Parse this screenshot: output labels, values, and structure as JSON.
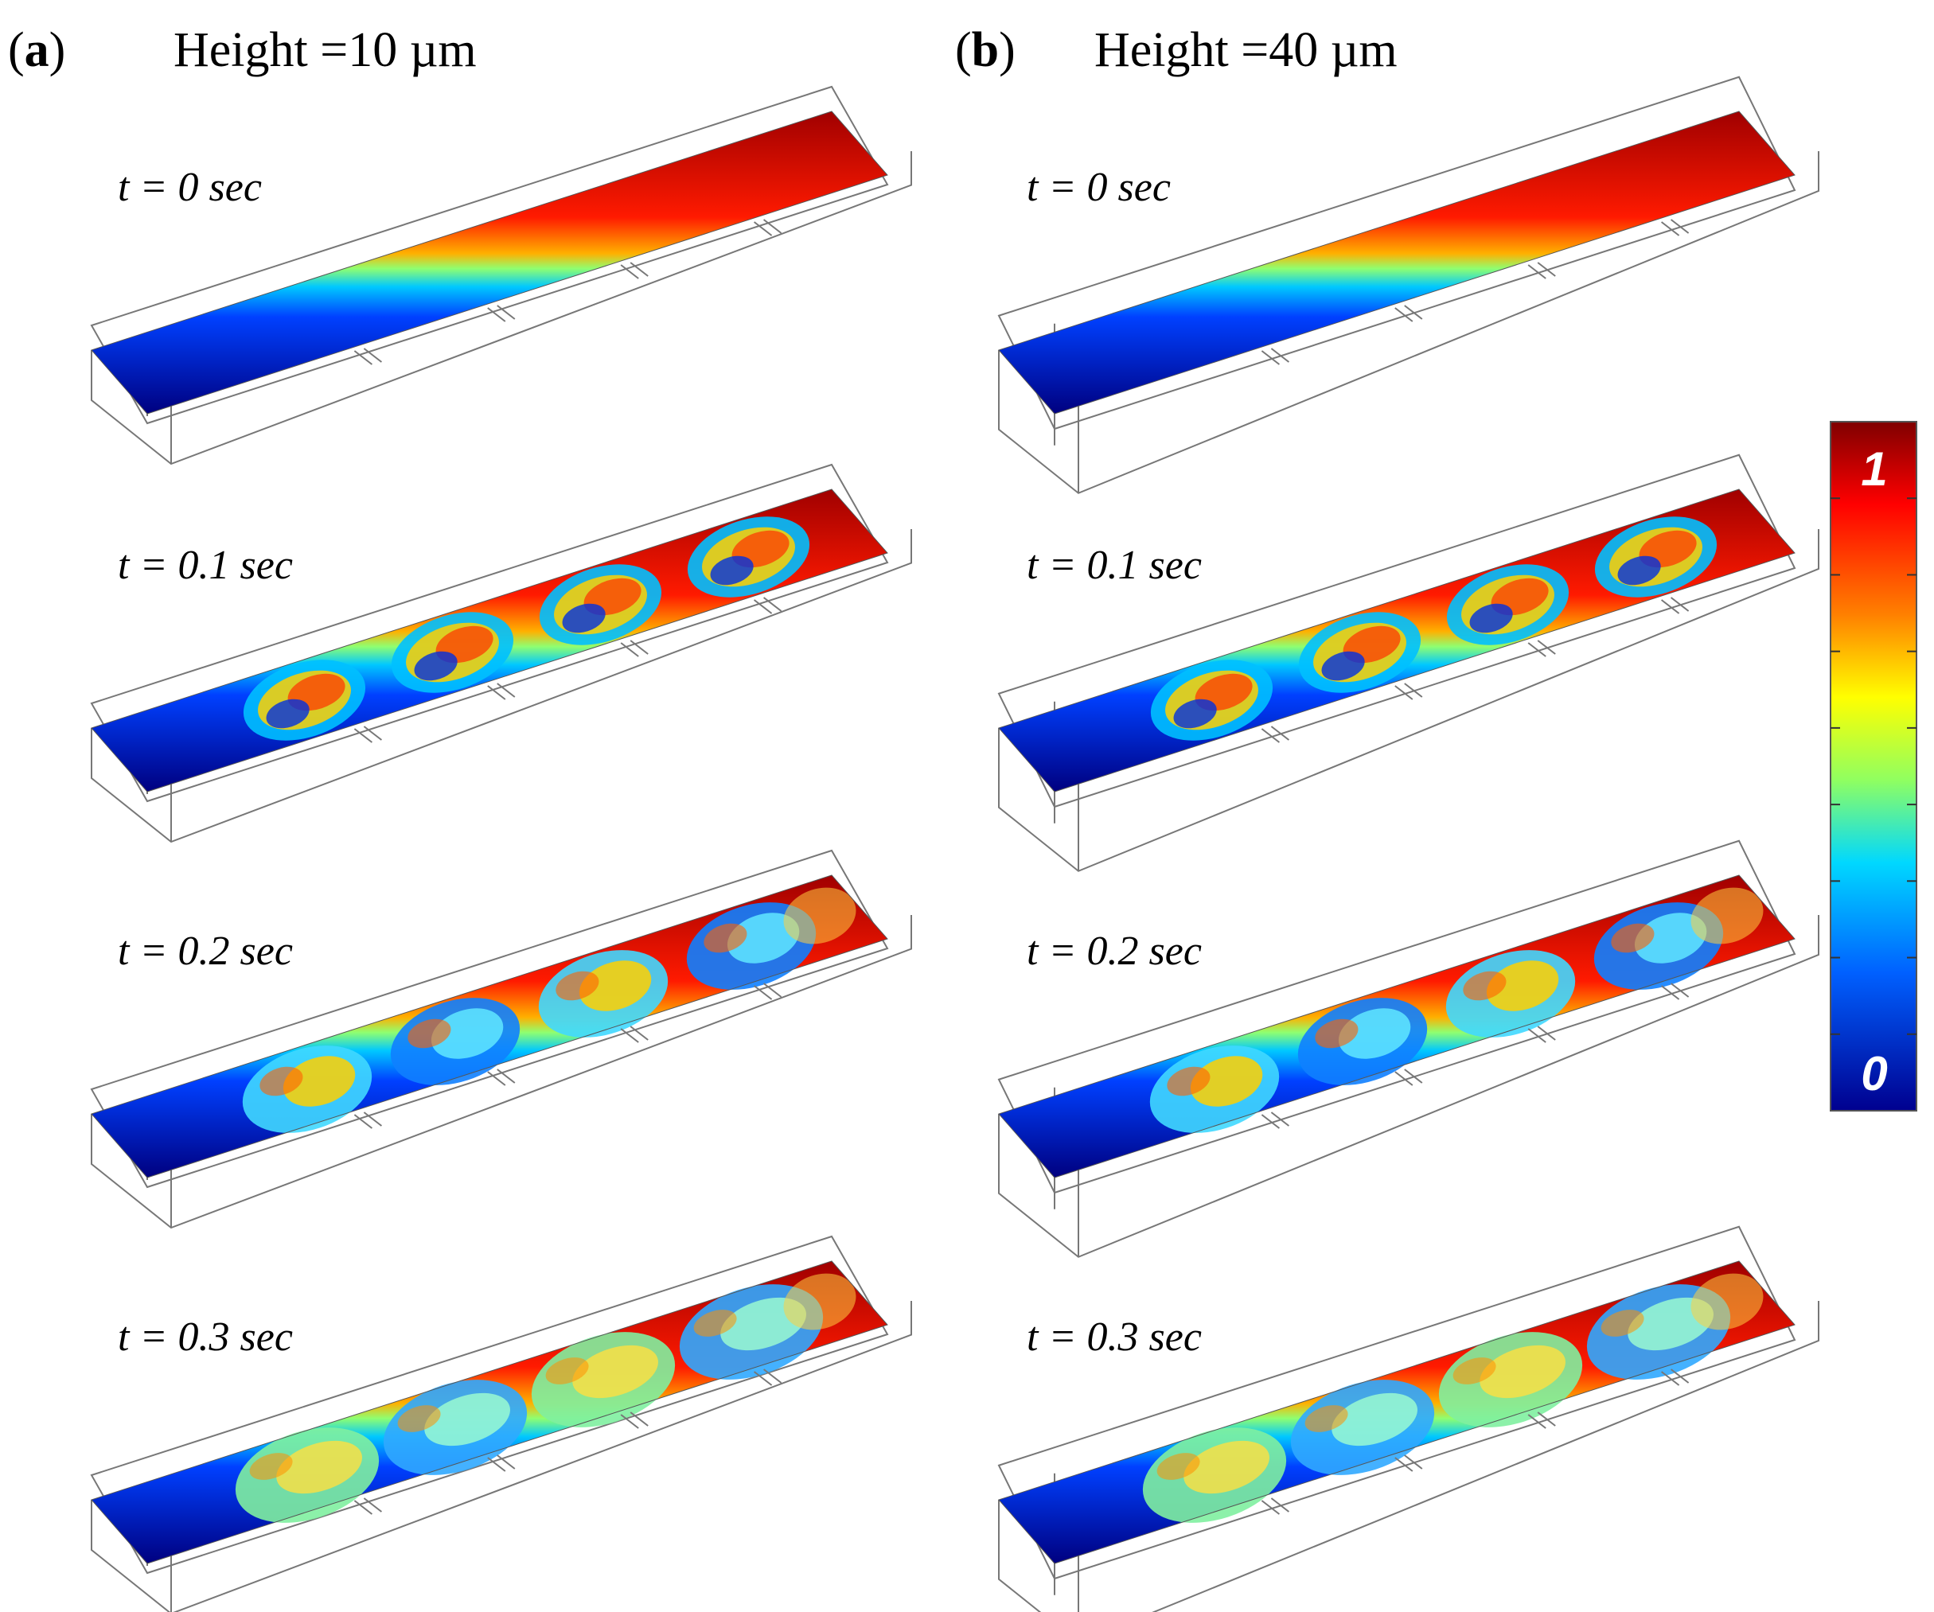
{
  "panels": [
    {
      "letter": "a",
      "title": "Height =10 µm",
      "snapshots": [
        {
          "time_label": "t = 0 sec",
          "mixing_state": "unmixed"
        },
        {
          "time_label": "t = 0.1 sec",
          "mixing_state": "vortices"
        },
        {
          "time_label": "t = 0.2 sec",
          "mixing_state": "developing"
        },
        {
          "time_label": "t = 0.3 sec",
          "mixing_state": "mixed"
        }
      ]
    },
    {
      "letter": "b",
      "title": "Height =40 µm",
      "snapshots": [
        {
          "time_label": "t = 0 sec",
          "mixing_state": "unmixed"
        },
        {
          "time_label": "t = 0.1 sec",
          "mixing_state": "vortices"
        },
        {
          "time_label": "t = 0.2 sec",
          "mixing_state": "developing"
        },
        {
          "time_label": "t = 0.3 sec",
          "mixing_state": "mixed"
        }
      ]
    }
  ],
  "colorbar": {
    "max_label": "1",
    "min_label": "0",
    "colors": [
      "#7f0000",
      "#ff0000",
      "#ff7f00",
      "#ffff00",
      "#7fff7f",
      "#00d4ff",
      "#0060ff",
      "#00008f"
    ]
  }
}
